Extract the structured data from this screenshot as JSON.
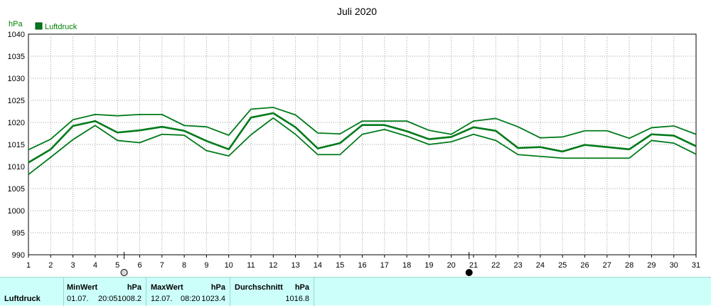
{
  "chart_data": {
    "type": "line",
    "title": "Juli 2020",
    "ylabel": "hPa",
    "ylim": [
      990,
      1040
    ],
    "yticks": [
      990,
      995,
      1000,
      1005,
      1010,
      1015,
      1020,
      1025,
      1030,
      1035,
      1040
    ],
    "xlim": [
      1,
      31
    ],
    "categories": [
      1,
      2,
      3,
      4,
      5,
      6,
      7,
      8,
      9,
      10,
      11,
      12,
      13,
      14,
      15,
      16,
      17,
      18,
      19,
      20,
      21,
      22,
      23,
      24,
      25,
      26,
      27,
      28,
      29,
      30,
      31
    ],
    "legend": [
      "Luftdruck"
    ],
    "legend_position": "top-left",
    "grid": true,
    "color": "#007a1a",
    "series": [
      {
        "role": "max",
        "values": [
          1013.8,
          1016.2,
          1020.6,
          1021.8,
          1021.5,
          1021.8,
          1021.8,
          1019.3,
          1019.0,
          1017.1,
          1023.0,
          1023.4,
          1021.7,
          1017.6,
          1017.4,
          1020.3,
          1020.3,
          1020.3,
          1018.2,
          1017.3,
          1020.3,
          1020.9,
          1019.0,
          1016.5,
          1016.7,
          1018.1,
          1018.1,
          1016.4,
          1018.8,
          1019.2,
          1017.3
        ]
      },
      {
        "name": "Luftdruck",
        "role": "mean",
        "values": [
          1010.9,
          1013.9,
          1019.2,
          1020.3,
          1017.7,
          1018.2,
          1019.0,
          1018.1,
          1015.8,
          1013.9,
          1021.1,
          1022.1,
          1018.9,
          1014.1,
          1015.3,
          1019.4,
          1019.4,
          1018.0,
          1016.2,
          1016.7,
          1018.9,
          1018.1,
          1014.2,
          1014.4,
          1013.4,
          1014.9,
          1014.4,
          1013.9,
          1017.3,
          1017.0,
          1014.6
        ]
      },
      {
        "role": "min",
        "values": [
          1008.2,
          1012.1,
          1016.1,
          1019.3,
          1015.9,
          1015.4,
          1017.3,
          1017.1,
          1013.6,
          1012.4,
          1017.2,
          1021.0,
          1017.3,
          1012.7,
          1012.7,
          1017.3,
          1018.4,
          1016.9,
          1015.0,
          1015.6,
          1017.3,
          1015.9,
          1012.7,
          1012.3,
          1011.9,
          1011.9,
          1011.9,
          1011.9,
          1015.9,
          1015.3,
          1012.8
        ]
      }
    ],
    "markers": [
      {
        "x": 5.3,
        "type": "empty-circle"
      },
      {
        "x": 20.8,
        "type": "filled-circle"
      }
    ]
  },
  "stats": {
    "row_label": "Luftdruck",
    "min": {
      "label": "MinWert",
      "unit": "hPa",
      "date": "01.07.",
      "time": "20:05",
      "value": "1008.2"
    },
    "max": {
      "label": "MaxWert",
      "unit": "hPa",
      "date": "12.07.",
      "time": "08:20",
      "value": "1023.4"
    },
    "avg": {
      "label": "Durchschnitt",
      "unit": "hPa",
      "value": "1016.8"
    }
  }
}
